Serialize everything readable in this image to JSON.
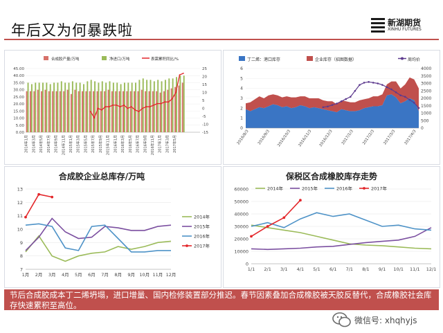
{
  "slide": {
    "title": "年后又为何暴跌啦",
    "logo": {
      "name_cn": "新湖期货",
      "name_en": "XINHU FUTURES"
    },
    "caption": "节后合成胶成本丁二烯坍塌，进口增量、国内检修装置部分推迟。春节因素叠加合成橡胶被天胶反替代，合成橡胶社会库存快速累积至高位。",
    "watermark": "微信号: xhqhyjs",
    "accent_color": "#c0504d"
  },
  "chart_data": [
    {
      "type": "bar",
      "legend": [
        "合成胶产量/万吨",
        "净进口/万吨",
        "表需累积同比/%"
      ],
      "ylim_left": [
        0,
        45
      ],
      "ylim_right": [
        -15,
        25
      ],
      "left_ticks": [
        "45.00",
        "40.00",
        "35.00",
        "30.00",
        "25.00",
        "20.00",
        "15.00",
        "10.00",
        "5.00",
        "0.00"
      ],
      "right_ticks": [
        "25",
        "20",
        "15",
        "10",
        "5",
        "0",
        "-5",
        "-10",
        "-15"
      ],
      "x_labels": [
        "2014年1月",
        "2014年3月",
        "2014年5月",
        "2014年7月",
        "2014年9月",
        "2014年11月",
        "2015年1月",
        "2015年3月",
        "2015年5月",
        "2015年7月",
        "2015年9月",
        "2015年11月",
        "2016年1月",
        "2016年3月",
        "2016年5月",
        "2016年7月",
        "2016年9月",
        "2016年11月",
        "2017年1月",
        "2017年3月",
        "2017年5月"
      ],
      "series": [
        {
          "name": "合成胶产量/万吨",
          "color": "#d7716a",
          "values": [
            29,
            29,
            29,
            30,
            29,
            30,
            29,
            29,
            29,
            29,
            29,
            30,
            27,
            30,
            29,
            29,
            29,
            29,
            29,
            29,
            29,
            29,
            30,
            29,
            29,
            29,
            29,
            29,
            29,
            29,
            29,
            30,
            29,
            29,
            29,
            29,
            28,
            29,
            30,
            31,
            32,
            33,
            35,
            0,
            0,
            0,
            0
          ]
        },
        {
          "name": "净进口/万吨",
          "color": "#9bbb59",
          "values": [
            35,
            34,
            35,
            35,
            35,
            35,
            34,
            35,
            35,
            36,
            35,
            35,
            36,
            35,
            35,
            34,
            36,
            37,
            36,
            35,
            36,
            35,
            36,
            35,
            35,
            34,
            35,
            35,
            35,
            35,
            37,
            38,
            37,
            37,
            36,
            37,
            36,
            37,
            38,
            38,
            39,
            40,
            40,
            0,
            0,
            0,
            0
          ]
        },
        {
          "name": "表需累积同比/%",
          "color": "#e3262a",
          "values": [
            null,
            null,
            null,
            null,
            null,
            null,
            null,
            null,
            null,
            null,
            null,
            null,
            null,
            null,
            null,
            null,
            null,
            -2,
            -6,
            0,
            -1,
            1,
            1,
            2,
            2,
            1,
            2,
            0,
            1,
            -1,
            -2,
            0,
            1,
            1,
            2,
            3,
            3,
            4,
            4,
            6,
            10,
            21,
            22,
            null,
            null,
            null,
            null
          ]
        }
      ]
    },
    {
      "type": "area",
      "legend": [
        "丁二烯：港口库存",
        "企业库存（招图数据）",
        "周均价"
      ],
      "ylim_left": [
        0,
        6
      ],
      "ylim_right": [
        0,
        4000
      ],
      "left_ticks": [
        "6",
        "5",
        "4",
        "3",
        "2",
        "1",
        "0"
      ],
      "right_ticks": [
        "4000",
        "3500",
        "3000",
        "2500",
        "2000",
        "1500",
        "1000",
        "500",
        "0"
      ],
      "x_labels": [
        "2016/8/3",
        "2016/9/3",
        "2016/10/3",
        "2016/11/3",
        "2016/12/3",
        "2017/1/3",
        "2017/2/3",
        "2017/3/3",
        "2017/4/3"
      ],
      "series": [
        {
          "name": "丁二烯：港口库存",
          "color": "#3a75c4",
          "values": [
            1.9,
            1.7,
            1.9,
            2.1,
            2.0,
            2.2,
            2.4,
            2.3,
            2.1,
            2.2,
            2.0,
            2.1,
            2.3,
            2.2,
            2.0,
            2.1,
            2.0,
            1.9,
            1.8,
            1.7,
            1.6,
            1.9,
            1.8,
            1.7,
            1.7,
            1.8,
            2.0,
            2.1,
            2.2,
            2.2,
            2.3,
            3.3,
            3.4,
            3.1,
            2.5,
            2.7,
            3.0,
            2.8,
            1.7
          ]
        },
        {
          "name": "企业库存（招图数据）",
          "color": "#c0504d",
          "values": [
            0.6,
            0.9,
            1.0,
            1.1,
            1.0,
            1.1,
            1.0,
            1.0,
            1.0,
            1.0,
            1.1,
            1.0,
            0.9,
            1.0,
            1.0,
            0.9,
            1.0,
            0.9,
            0.9,
            1.0,
            0.8,
            0.9,
            0.9,
            0.9,
            0.9,
            1.0,
            0.9,
            0.9,
            1.0,
            1.0,
            1.1,
            1.1,
            1.3,
            1.6,
            1.5,
            1.7,
            2.1,
            2.1,
            2.3
          ]
        },
        {
          "name": "周均价",
          "color": "#5d3a8e",
          "values": [
            null,
            null,
            null,
            null,
            null,
            null,
            null,
            null,
            null,
            null,
            null,
            null,
            null,
            null,
            null,
            null,
            null,
            1400,
            1450,
            1550,
            1650,
            1800,
            1950,
            2100,
            2500,
            2900,
            3050,
            3100,
            3050,
            3000,
            2900,
            2750,
            2600,
            2400,
            2200,
            2100,
            1900,
            1700,
            1350
          ]
        }
      ]
    },
    {
      "type": "line",
      "title": "合成胶企业总库存/万吨",
      "categories": [
        "1月",
        "2月",
        "3月",
        "4月",
        "5月",
        "6月",
        "7月",
        "8月",
        "9月",
        "10月",
        "11月",
        "12月"
      ],
      "ylim": [
        7,
        13
      ],
      "y_ticks": [
        "13",
        "12",
        "11",
        "10",
        "9",
        "8",
        "7"
      ],
      "series": [
        {
          "name": "2014年",
          "color": "#9bbb59",
          "values": [
            8.3,
            9.5,
            8.0,
            7.6,
            8.0,
            8.2,
            8.3,
            8.7,
            8.5,
            8.7,
            9.0,
            9.1
          ]
        },
        {
          "name": "2015年",
          "color": "#7b4fa0",
          "values": [
            8.4,
            9.4,
            10.8,
            9.8,
            9.3,
            9.4,
            10.2,
            10.1,
            9.9,
            9.9,
            10.2,
            10.3
          ]
        },
        {
          "name": "2016年",
          "color": "#4d92c7",
          "values": [
            10.3,
            10.4,
            10.2,
            8.6,
            8.4,
            10.2,
            10.3,
            9.3,
            8.3,
            8.3,
            8.4,
            8.4
          ]
        },
        {
          "name": "2017年",
          "color": "#e3262a",
          "values": [
            10.9,
            12.6,
            12.4,
            null,
            null,
            null,
            null,
            null,
            null,
            null,
            null,
            null
          ]
        }
      ]
    },
    {
      "type": "line",
      "title": "保税区合成橡胶库存走势",
      "categories": [
        "1/1",
        "2/1",
        "3/1",
        "4/1",
        "5/1",
        "6/1",
        "7/1",
        "8/1",
        "9/1",
        "10/1",
        "11/1",
        "12/1"
      ],
      "ylim": [
        0,
        60000
      ],
      "y_ticks": [
        "60000",
        "50000",
        "40000",
        "30000",
        "20000",
        "10000",
        "0"
      ],
      "series": [
        {
          "name": "2014年",
          "color": "#9bbb59",
          "values": [
            31000,
            29000,
            27000,
            25000,
            22000,
            19000,
            16000,
            15000,
            14500,
            13500,
            12500,
            12000
          ]
        },
        {
          "name": "2015年",
          "color": "#7b4fa0",
          "values": [
            12000,
            11500,
            12000,
            12500,
            13500,
            14000,
            15500,
            17000,
            18000,
            19000,
            22000,
            29000
          ]
        },
        {
          "name": "2016年",
          "color": "#4d92c7",
          "values": [
            30000,
            33000,
            29000,
            36000,
            41000,
            38000,
            40000,
            35000,
            30000,
            31000,
            28000,
            27000
          ]
        },
        {
          "name": "2017年",
          "color": "#e3262a",
          "values": [
            22000,
            30000,
            37000,
            51000,
            null,
            null,
            null,
            null,
            null,
            null,
            null,
            null
          ]
        }
      ]
    }
  ]
}
